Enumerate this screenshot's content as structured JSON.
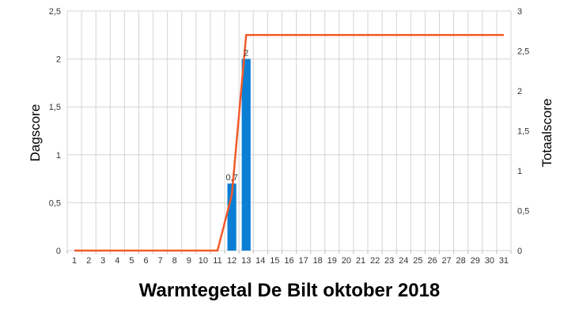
{
  "chart_data": {
    "type": "bar+line",
    "title": "Warmtegetal De Bilt oktober 2018",
    "xlabel": "",
    "ylabel_left": "Dagscore",
    "ylabel_right": "Totaalscore",
    "x": [
      1,
      2,
      3,
      4,
      5,
      6,
      7,
      8,
      9,
      10,
      11,
      12,
      13,
      14,
      15,
      16,
      17,
      18,
      19,
      20,
      21,
      22,
      23,
      24,
      25,
      26,
      27,
      28,
      29,
      30,
      31
    ],
    "ylim_left": [
      0,
      2.5
    ],
    "yticks_left": [
      "0",
      "0,5",
      "1",
      "1,5",
      "2",
      "2,5"
    ],
    "ylim_right": [
      0,
      3
    ],
    "yticks_right": [
      "0",
      "0,5",
      "1",
      "1,5",
      "2",
      "2,5",
      "3"
    ],
    "grid": true,
    "series": [
      {
        "kind": "bar",
        "axis": "left",
        "color": "#0a7fd5",
        "values": [
          0,
          0,
          0,
          0,
          0,
          0,
          0,
          0,
          0,
          0,
          0,
          0.7,
          2,
          0,
          0,
          0,
          0,
          0,
          0,
          0,
          0,
          0,
          0,
          0,
          0,
          0,
          0,
          0,
          0,
          0,
          0
        ],
        "labels": {
          "12": "0,7",
          "13": "2"
        }
      },
      {
        "kind": "line",
        "axis": "right",
        "color": "#f25a2a",
        "values": [
          0,
          0,
          0,
          0,
          0,
          0,
          0,
          0,
          0,
          0,
          0,
          0.7,
          2.7,
          2.7,
          2.7,
          2.7,
          2.7,
          2.7,
          2.7,
          2.7,
          2.7,
          2.7,
          2.7,
          2.7,
          2.7,
          2.7,
          2.7,
          2.7,
          2.7,
          2.7,
          2.7
        ]
      }
    ]
  }
}
